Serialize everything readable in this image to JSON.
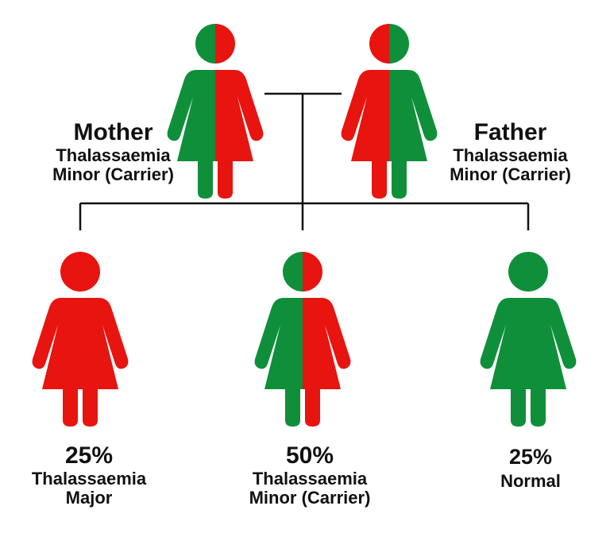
{
  "colors": {
    "affected": "#e8140f",
    "normal": "#0f8f3a",
    "line": "#111111"
  },
  "parents": [
    {
      "id": "mother",
      "role": "Mother",
      "status_line1": "Thalassaemia",
      "status_line2": "Minor (Carrier)",
      "left_color": "normal",
      "right_color": "affected"
    },
    {
      "id": "father",
      "role": "Father",
      "status_line1": "Thalassaemia",
      "status_line2": "Minor (Carrier)",
      "left_color": "affected",
      "right_color": "normal"
    }
  ],
  "children": [
    {
      "id": "major",
      "percent": "25%",
      "line1": "Thalassaemia",
      "line2": "Major",
      "left_color": "affected",
      "right_color": "affected"
    },
    {
      "id": "minor",
      "percent": "50%",
      "line1": "Thalassaemia",
      "line2": "Minor (Carrier)",
      "left_color": "normal",
      "right_color": "affected"
    },
    {
      "id": "normal",
      "percent": "25%",
      "line1": "Normal",
      "line2": "",
      "left_color": "normal",
      "right_color": "normal"
    }
  ]
}
